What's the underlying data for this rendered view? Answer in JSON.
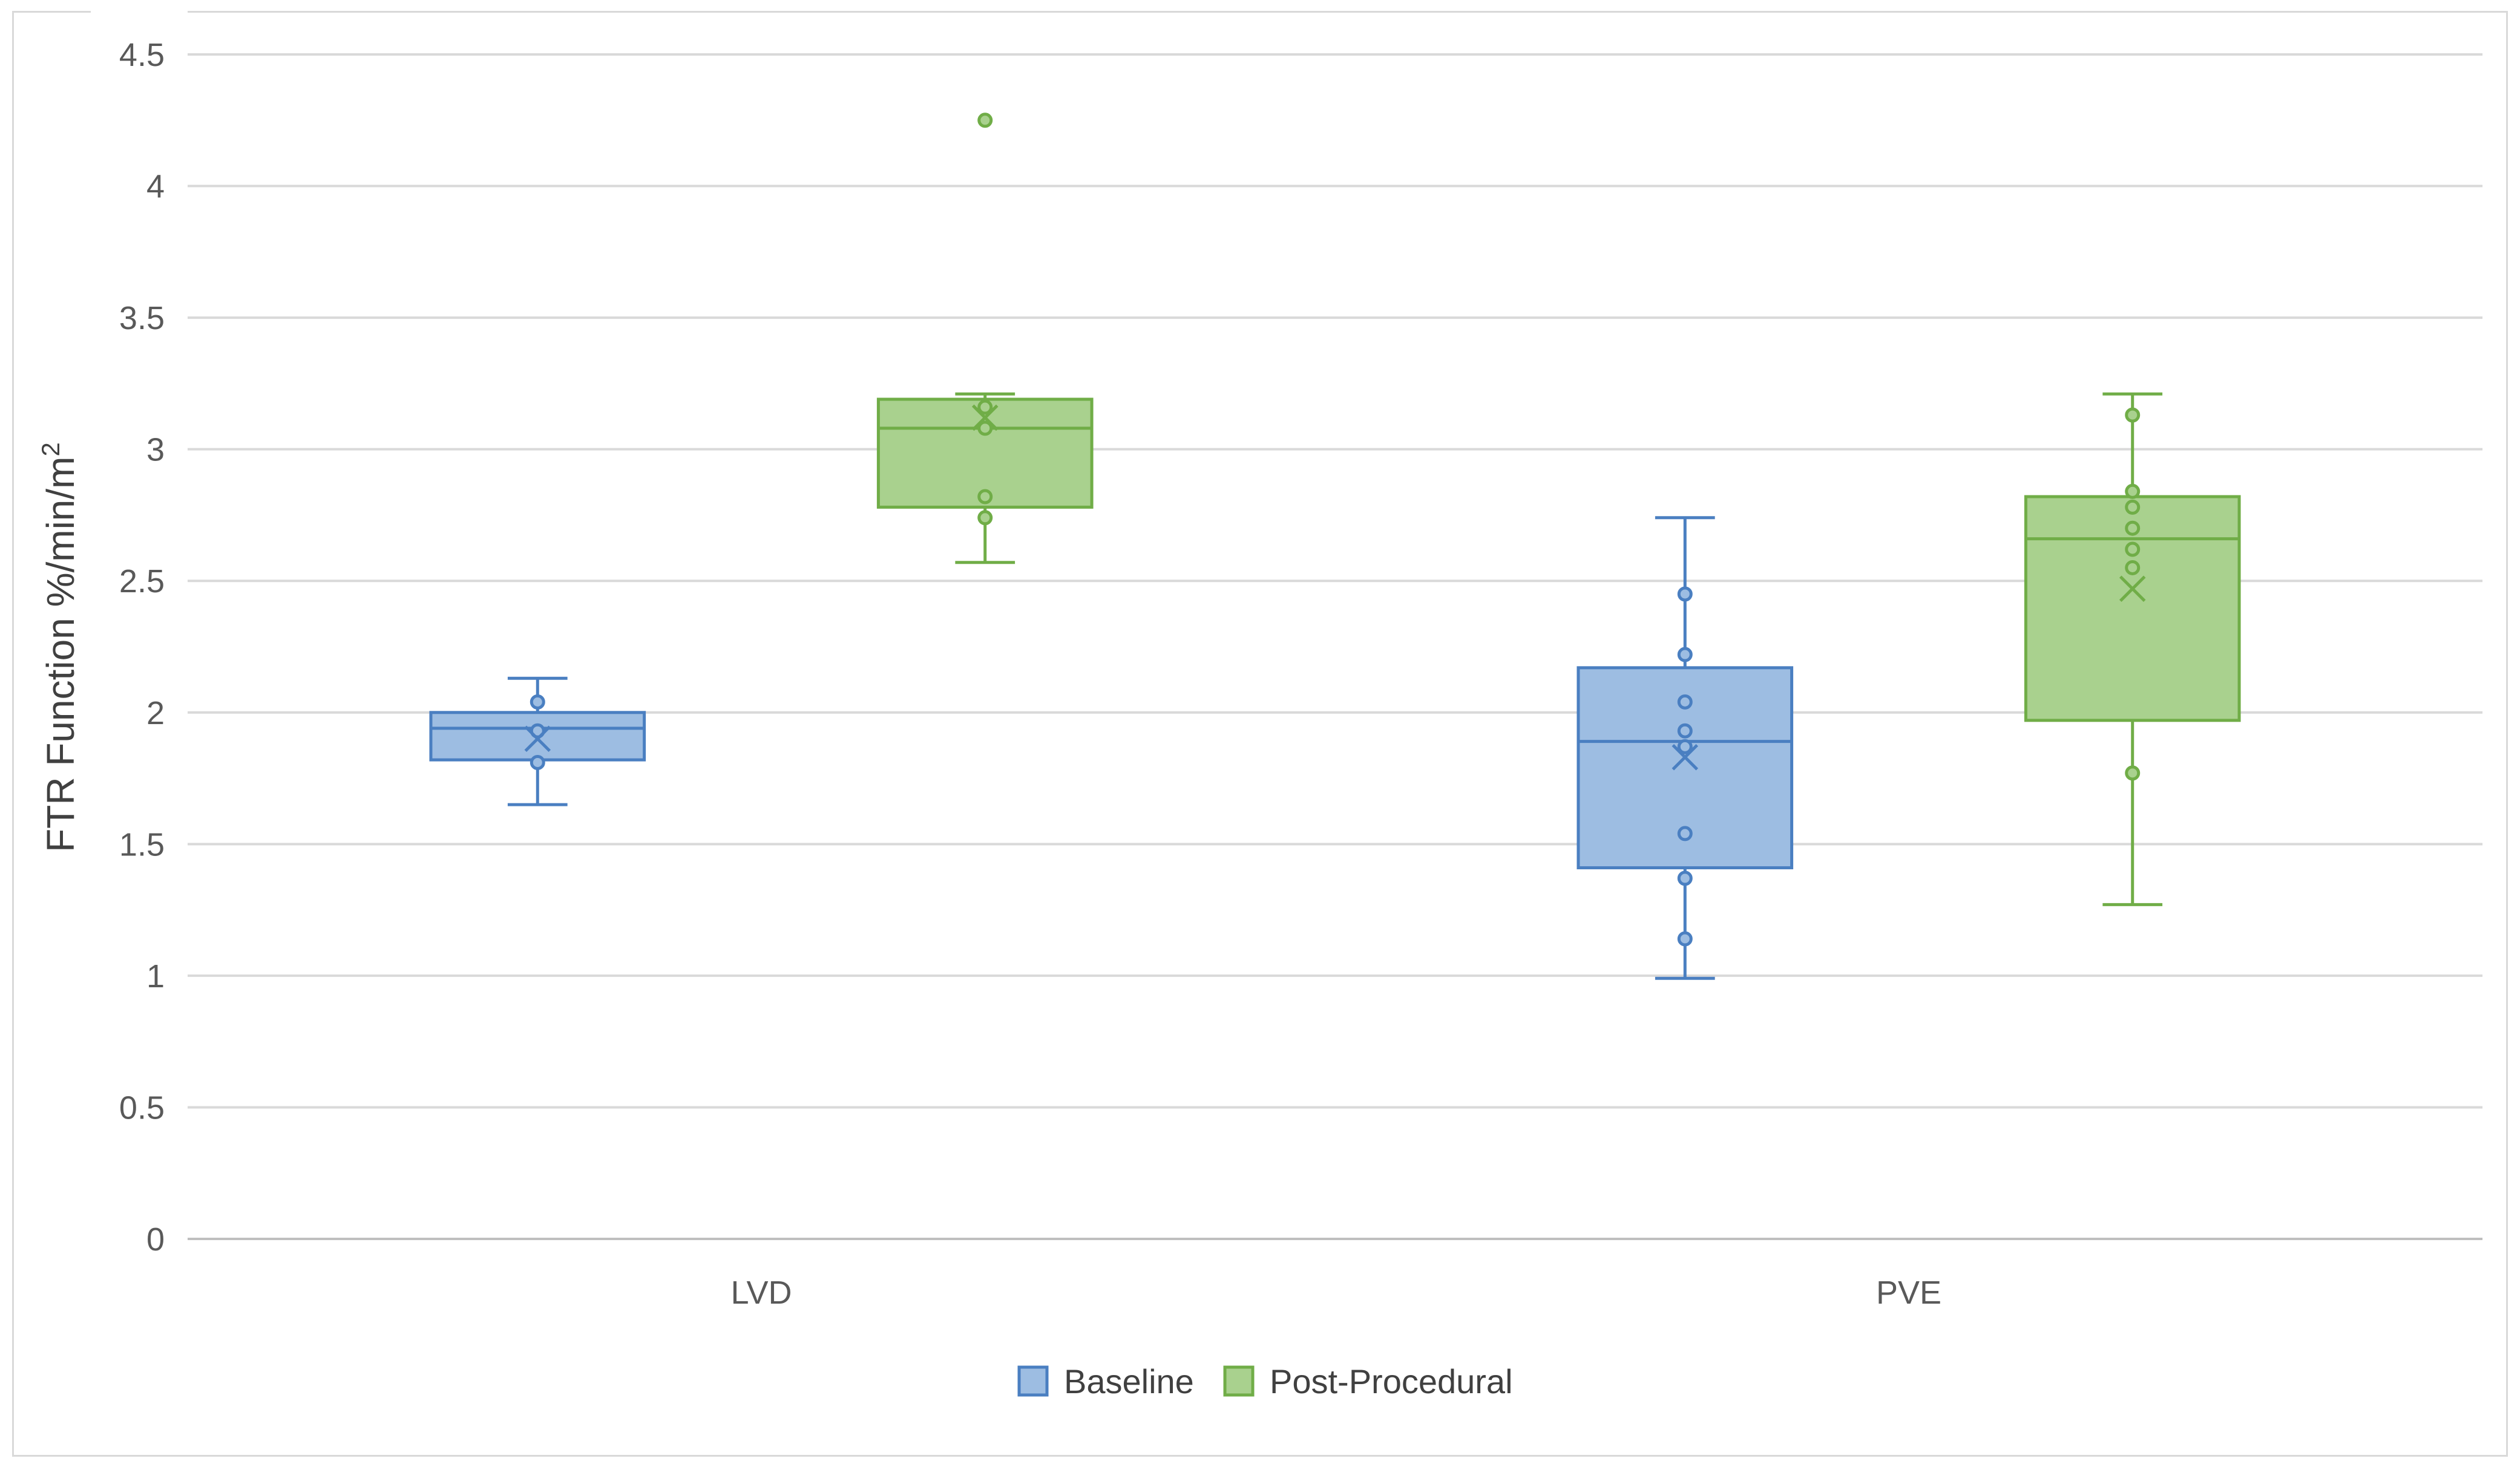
{
  "chart_data": {
    "type": "box",
    "ylabel": "FTR Function  %/min/m",
    "ylabel_superscript": "2",
    "ylim": [
      0,
      4.5
    ],
    "yticks": [
      0,
      0.5,
      1,
      1.5,
      2,
      2.5,
      3,
      3.5,
      4,
      4.5
    ],
    "ytick_labels": [
      "0",
      "0.5",
      "1",
      "1.5",
      "2",
      "2.5",
      "3",
      "3.5",
      "4",
      "4.5"
    ],
    "categories": [
      "LVD",
      "PVE"
    ],
    "grid": true,
    "legend_position": "bottom",
    "series": [
      {
        "name": "Baseline",
        "color": "#4a7fc1",
        "fill": "#9dbde2",
        "boxes": [
          {
            "category": "LVD",
            "min": 1.65,
            "q1": 1.82,
            "median": 1.94,
            "q3": 2.0,
            "max": 2.13,
            "mean": 1.9,
            "points": [
              1.81,
              1.93,
              2.04
            ]
          },
          {
            "category": "PVE",
            "min": 0.99,
            "q1": 1.41,
            "median": 1.89,
            "q3": 2.17,
            "max": 2.74,
            "mean": 1.83,
            "points": [
              1.14,
              1.37,
              1.54,
              1.87,
              1.93,
              2.04,
              2.22,
              2.45
            ]
          }
        ]
      },
      {
        "name": "Post-Procedural",
        "color": "#70ad47",
        "fill": "#a9d18e",
        "boxes": [
          {
            "category": "LVD",
            "min": 2.57,
            "q1": 2.78,
            "median": 3.08,
            "q3": 3.19,
            "max": 3.21,
            "mean": 3.12,
            "points": [
              2.74,
              2.82,
              3.08,
              3.16,
              4.25
            ]
          },
          {
            "category": "PVE",
            "min": 1.27,
            "q1": 1.97,
            "median": 2.66,
            "q3": 2.82,
            "max": 3.21,
            "mean": 2.47,
            "points": [
              1.77,
              2.55,
              2.62,
              2.7,
              2.78,
              2.84,
              3.13
            ]
          }
        ]
      }
    ]
  }
}
